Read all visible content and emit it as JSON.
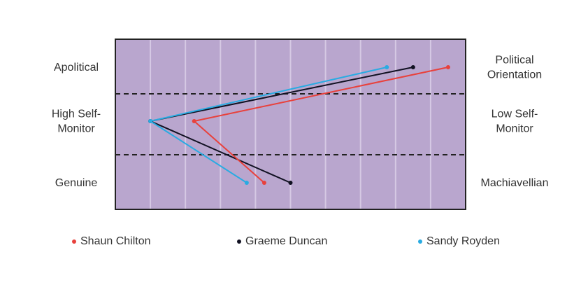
{
  "chart_data": {
    "type": "line",
    "x_range": [
      0,
      10
    ],
    "y_categories": [
      "Political Orientation",
      "Self-Monitoring",
      "Genuineness"
    ],
    "left_labels": [
      [
        "Apolitical"
      ],
      [
        "High Self-",
        "Monitor"
      ],
      [
        "Genuine"
      ]
    ],
    "right_labels": [
      [
        "Political",
        "Orientation"
      ],
      [
        "Low Self-",
        "Monitor"
      ],
      [
        "Machiavellian"
      ]
    ],
    "grid": true,
    "legend_position": "bottom",
    "series": [
      {
        "name": "Shaun Chilton",
        "color": "#e8413c",
        "values": [
          9.5,
          2.25,
          4.25
        ]
      },
      {
        "name": "Graeme Duncan",
        "color": "#111122",
        "values": [
          8.5,
          1.0,
          5.0
        ]
      },
      {
        "name": "Sandy Royden",
        "color": "#29abe2",
        "values": [
          7.75,
          1.0,
          3.75
        ]
      }
    ],
    "colors": {
      "plot_bg": "#b9a6ce",
      "grid": "#d6c9e4",
      "border": "#222222"
    }
  }
}
